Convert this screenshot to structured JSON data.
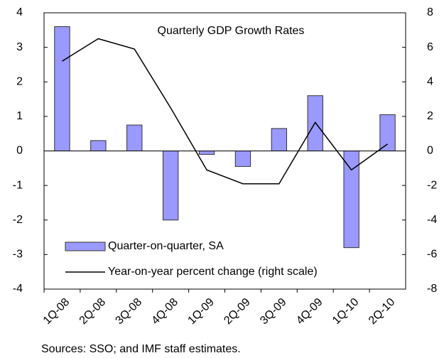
{
  "chart_data": {
    "type": "combo",
    "title": "Quarterly GDP Growth Rates",
    "categories": [
      "1Q-08",
      "2Q-08",
      "3Q-08",
      "4Q-08",
      "1Q-09",
      "2Q-09",
      "3Q-09",
      "4Q-09",
      "1Q-10",
      "2Q-10"
    ],
    "series": [
      {
        "name": "Quarter-on-quarter, SA",
        "type": "bar",
        "color": "#9999ff",
        "values": [
          3.6,
          0.3,
          0.75,
          -2.0,
          -0.1,
          -0.45,
          0.65,
          1.6,
          -2.8,
          1.05
        ]
      },
      {
        "name": "Year-on-year percent change (right scale)",
        "type": "line",
        "axis": "y2",
        "color": "#000000",
        "values": [
          5.2,
          6.5,
          5.9,
          2.5,
          -1.1,
          -1.9,
          -1.9,
          1.65,
          -1.1,
          0.4
        ]
      }
    ],
    "ylim": [
      -4,
      4
    ],
    "yticks": [
      -4,
      -3,
      -2,
      -1,
      0,
      1,
      2,
      3,
      4
    ],
    "y2lim": [
      -8,
      8
    ],
    "y2ticks": [
      -8,
      -6,
      -4,
      -2,
      0,
      2,
      4,
      6,
      8
    ],
    "legend": "lower left",
    "note": "Sources: SSO; and IMF staff estimates."
  }
}
